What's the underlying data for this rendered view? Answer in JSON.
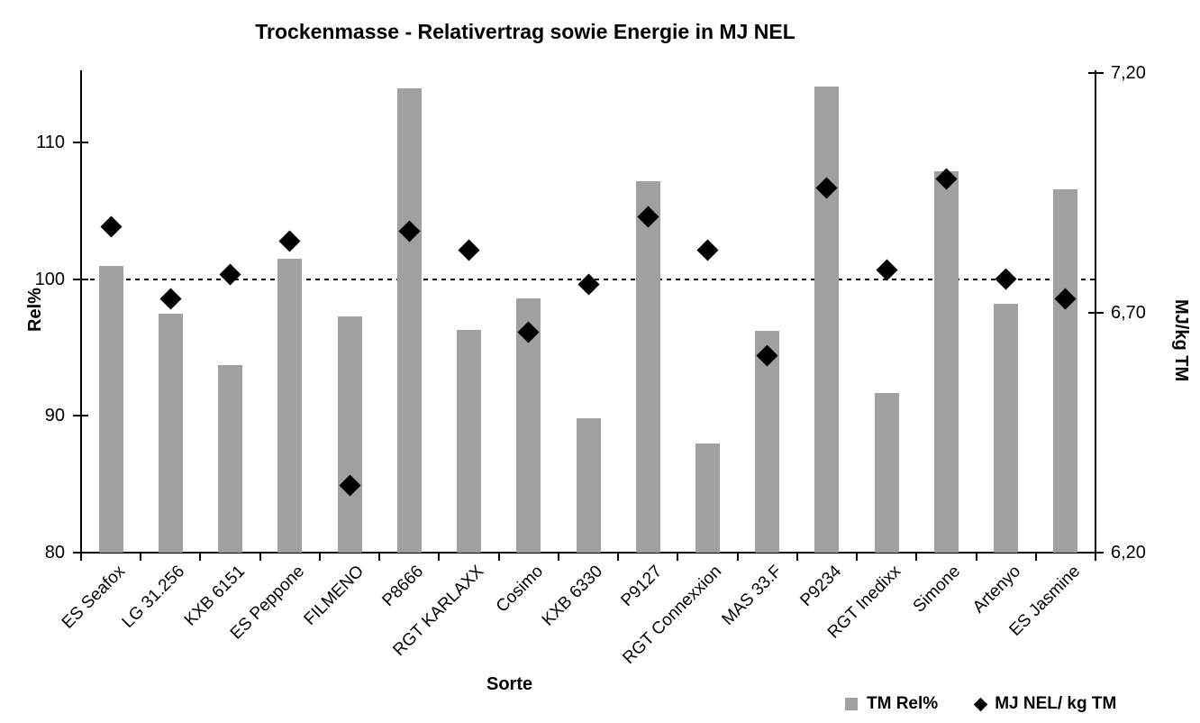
{
  "title": "Trockenmasse - Relativertrag sowie Energie in MJ NEL",
  "legend": {
    "bar_label": "TM Rel%",
    "scatter_label": "MJ NEL/ kg TM"
  },
  "colors": {
    "bar": "#a0a0a0",
    "marker": "#000000",
    "axis": "#000000",
    "background": "#ffffff"
  },
  "chart_data": {
    "type": "combo",
    "title": "Trockenmasse - Relativertrag sowie Energie in MJ NEL",
    "xlabel": "Sorte",
    "ylabel_left": "Rel%",
    "ylabel_right": "MJ/kg TM",
    "ylim_left": [
      80,
      115.1
    ],
    "ylim_right": [
      6.2,
      7.2
    ],
    "yticks_left": [
      {
        "value": 110,
        "label": "110"
      },
      {
        "value": 100,
        "label": "100"
      },
      {
        "value": 90,
        "label": "90"
      },
      {
        "value": 80,
        "label": "80"
      }
    ],
    "yticks_right": [
      {
        "value": 7.2,
        "label": "7,20"
      },
      {
        "value": 6.7,
        "label": "6,70"
      },
      {
        "value": 6.2,
        "label": "6,20"
      }
    ],
    "reference_line_left": 100,
    "grid": false,
    "legend_position": "bottom-right",
    "categories": [
      "ES Seafox",
      "LG 31.256",
      "KXB 6151",
      "ES Peppone",
      "FILMENO",
      "P8666",
      "RGT KARLAXX",
      "Cosimo",
      "KXB 6330",
      "P9127",
      "RGT Connexxion",
      "MAS 33.F",
      "P9234",
      "RGT Inedixx",
      "Simone",
      "Artenyo",
      "ES Jasmine"
    ],
    "series": [
      {
        "name": "TM Rel%",
        "type": "bar",
        "axis": "left",
        "color": "#a0a0a0",
        "values": [
          101.0,
          97.5,
          93.7,
          101.5,
          97.3,
          114.0,
          96.3,
          98.6,
          89.8,
          107.2,
          88.0,
          96.2,
          114.1,
          91.7,
          107.9,
          98.2,
          106.6
        ]
      },
      {
        "name": "MJ NEL/ kg TM",
        "type": "scatter",
        "marker": "diamond",
        "axis": "right",
        "color": "#000000",
        "values": [
          6.88,
          6.73,
          6.78,
          6.85,
          6.34,
          6.87,
          6.83,
          6.66,
          6.76,
          6.9,
          6.83,
          6.61,
          6.96,
          6.79,
          6.98,
          6.77,
          6.73
        ]
      }
    ]
  }
}
